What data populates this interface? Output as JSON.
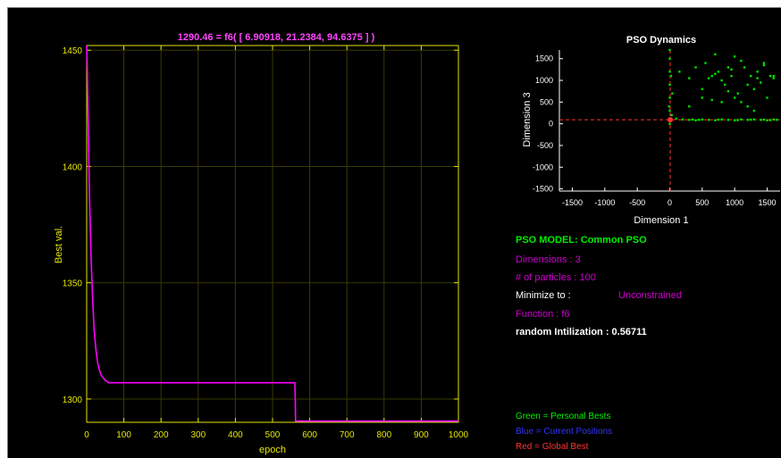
{
  "colors": {
    "background": "#000000",
    "axis_main": "#e6e600",
    "curve": "#ff00ff",
    "axis_scatter": "#ffffff",
    "particle": "#00dd00",
    "global_best": "#ff3333",
    "magenta_text": "#cc00cc",
    "blue_text": "#3333ff"
  },
  "main_chart": {
    "title": "1290.46 = f6( [  6.90918,   21.2384,   94.6375 ] )",
    "xlabel": "epoch",
    "ylabel": "Best val.",
    "xticks": [
      "0",
      "100",
      "200",
      "300",
      "400",
      "500",
      "600",
      "700",
      "800",
      "900",
      "1000"
    ],
    "yticks": [
      "1450",
      "1400",
      "1350",
      "1300"
    ]
  },
  "scatter_chart": {
    "title": "PSO Dynamics",
    "xlabel": "Dimension 1",
    "ylabel": "Dimension 3",
    "xticks": [
      "-1500",
      "-1000",
      "-500",
      "0",
      "500",
      "1000",
      "1500"
    ],
    "yticks": [
      "1500",
      "1000",
      "500",
      "0",
      "-500",
      "-1000",
      "-1500"
    ]
  },
  "info": {
    "model": "PSO MODEL: Common PSO",
    "dimensions": "Dimensions : 3",
    "particles": "# of particles : 100",
    "minimize_label": "Minimize to :",
    "minimize_value": "Unconstrained",
    "function": "Function : f6",
    "random_init": "random Intilization : 0.56711"
  },
  "legend": {
    "green": "Green = Personal Bests",
    "blue": "Blue  = Current Positions",
    "red": "Red    = Global Best"
  },
  "chart_data": [
    {
      "type": "line",
      "title": "1290.46 = f6( [  6.90918,   21.2384,   94.6375 ] )",
      "xlabel": "epoch",
      "ylabel": "Best val.",
      "xlim": [
        0,
        1000
      ],
      "ylim": [
        1290,
        1452
      ],
      "grid": true,
      "series": [
        {
          "x": [
            0,
            2,
            5,
            8,
            12,
            16,
            20,
            25,
            30,
            35,
            40,
            50,
            60,
            80,
            100,
            200,
            300,
            400,
            500,
            560,
            561,
            562,
            600,
            700,
            800,
            900,
            1000
          ],
          "values": [
            1452,
            1440,
            1410,
            1385,
            1360,
            1343,
            1330,
            1321,
            1315,
            1312,
            1310,
            1308,
            1307,
            1307,
            1307,
            1307,
            1307,
            1307,
            1307,
            1307,
            1300,
            1290.5,
            1290.5,
            1290.5,
            1290.5,
            1290.5,
            1290.5
          ]
        }
      ]
    },
    {
      "type": "scatter",
      "title": "PSO Dynamics",
      "xlabel": "Dimension 1",
      "ylabel": "Dimension 3",
      "xlim": [
        -1700,
        1700
      ],
      "ylim": [
        -1550,
        1700
      ],
      "grid": false,
      "series": [
        {
          "points": [
            [
              150,
              1200
            ],
            [
              300,
              1050
            ],
            [
              400,
              1300
            ],
            [
              500,
              800
            ],
            [
              550,
              1400
            ],
            [
              600,
              1050
            ],
            [
              650,
              1100
            ],
            [
              700,
              1600
            ],
            [
              750,
              1200
            ],
            [
              800,
              1000
            ],
            [
              850,
              900
            ],
            [
              900,
              1300
            ],
            [
              950,
              1100
            ],
            [
              1000,
              1550
            ],
            [
              1050,
              700
            ],
            [
              1100,
              1450
            ],
            [
              1150,
              1300
            ],
            [
              1200,
              900
            ],
            [
              1250,
              1100
            ],
            [
              1300,
              800
            ],
            [
              1350,
              1050
            ],
            [
              1400,
              950
            ],
            [
              1450,
              1400
            ],
            [
              1500,
              600
            ],
            [
              1550,
              1100
            ],
            [
              1600,
              1050
            ],
            [
              650,
              550
            ],
            [
              800,
              500
            ],
            [
              1000,
              600
            ],
            [
              1200,
              400
            ],
            [
              1300,
              300
            ],
            [
              500,
              600
            ],
            [
              900,
              750
            ],
            [
              1100,
              500
            ],
            [
              300,
              400
            ],
            [
              1450,
              1350
            ],
            [
              1600,
              1100
            ],
            [
              700,
              1150
            ],
            [
              950,
              1250
            ],
            [
              1350,
              1200
            ],
            [
              0,
              0
            ],
            [
              0,
              100
            ],
            [
              0,
              300
            ],
            [
              0,
              600
            ],
            [
              0,
              900
            ],
            [
              0,
              1200
            ],
            [
              0,
              1500
            ],
            [
              0,
              1700
            ],
            [
              30,
              200
            ],
            [
              40,
              700
            ],
            [
              20,
              1100
            ],
            [
              -10,
              400
            ],
            [
              100,
              120
            ],
            [
              200,
              100
            ],
            [
              300,
              90
            ],
            [
              400,
              80
            ],
            [
              500,
              100
            ],
            [
              600,
              90
            ],
            [
              700,
              80
            ],
            [
              800,
              100
            ],
            [
              900,
              90
            ],
            [
              1000,
              80
            ],
            [
              1100,
              100
            ],
            [
              1200,
              90
            ],
            [
              1300,
              100
            ],
            [
              1400,
              90
            ],
            [
              1500,
              80
            ],
            [
              1600,
              100
            ],
            [
              1650,
              90
            ],
            [
              350,
              100
            ],
            [
              450,
              90
            ],
            [
              750,
              95
            ],
            [
              1050,
              85
            ],
            [
              1250,
              95
            ],
            [
              1450,
              95
            ],
            [
              1550,
              85
            ]
          ]
        },
        {
          "points": [
            [
              7,
              94
            ]
          ]
        }
      ]
    }
  ]
}
